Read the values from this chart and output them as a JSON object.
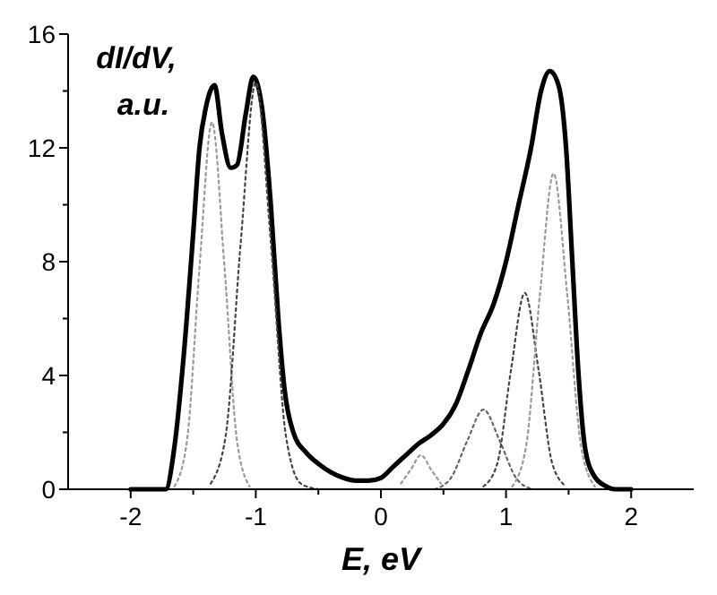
{
  "chart_data": {
    "type": "line",
    "xlabel": "E, eV",
    "ylabel": "dI/dV, a.u.",
    "xlim": [
      -2.5,
      2.5
    ],
    "xticks": [
      -2,
      {
        "value": -1.5,
        "label": null
      },
      -1,
      {
        "value": -0.5,
        "label": null
      },
      0,
      {
        "value": 0.5,
        "label": null
      },
      1,
      {
        "value": 1.5,
        "label": null
      },
      2
    ],
    "ylim": [
      0,
      16
    ],
    "yticks": [
      0,
      {
        "value": 2,
        "label": null
      },
      4,
      {
        "value": 6,
        "label": null
      },
      8,
      {
        "value": 10,
        "label": null
      },
      12,
      {
        "value": 14,
        "label": null
      },
      16
    ],
    "grid": false,
    "marker": "none",
    "series": [
      {
        "color": "#000000",
        "line_style": "solid",
        "x": [
          -2,
          -1.72,
          -1.65,
          -1.58,
          -1.5,
          -1.45,
          -1.4,
          -1.33,
          -1.27,
          -1.2,
          -1.15,
          -1.08,
          -1.02,
          -0.95,
          -0.88,
          -0.82,
          -0.77,
          -0.7,
          -0.6,
          -0.5,
          -0.4,
          -0.3,
          -0.2,
          -0.1,
          0,
          0.1,
          0.2,
          0.3,
          0.4,
          0.5,
          0.6,
          0.7,
          0.8,
          0.9,
          1,
          1.1,
          1.2,
          1.28,
          1.35,
          1.42,
          1.48,
          1.53,
          1.58,
          1.63,
          1.7,
          1.8,
          1.87,
          2
        ],
        "values": [
          0,
          0,
          1.5,
          4.5,
          9,
          12,
          13.4,
          14.2,
          12.5,
          11.3,
          11.4,
          13.2,
          14.5,
          13.4,
          10,
          6,
          3.5,
          2,
          1.3,
          0.9,
          0.6,
          0.4,
          0.3,
          0.3,
          0.4,
          0.8,
          1.2,
          1.6,
          1.9,
          2.3,
          3,
          4.2,
          5.5,
          6.5,
          8,
          10,
          12,
          14,
          14.7,
          14.2,
          12,
          8,
          4,
          1.5,
          0.5,
          0.1,
          0,
          0
        ]
      },
      {
        "color": "#999999",
        "line_style": "dotted",
        "x": [
          -1.65,
          -1.55,
          -1.45,
          -1.35,
          -1.25,
          -1.15,
          -1.05
        ],
        "values": [
          0.1,
          1.7,
          7.8,
          12.9,
          7.8,
          1.7,
          0.1
        ]
      },
      {
        "color": "#444444",
        "line_style": "dotted",
        "x": [
          -1.36,
          -1.24,
          -1.12,
          -1,
          -0.88,
          -0.76,
          -0.64,
          -0.5
        ],
        "values": [
          0.2,
          1.9,
          8.7,
          14.3,
          8.7,
          1.9,
          0.2,
          0
        ]
      },
      {
        "color": "#999999",
        "line_style": "dotted",
        "x": [
          0.16,
          0.24,
          0.32,
          0.4,
          0.48
        ],
        "values": [
          0.2,
          0.7,
          1.2,
          0.7,
          0.2
        ]
      },
      {
        "color": "#666666",
        "line_style": "dotted",
        "x": [
          0.43,
          0.56,
          0.69,
          0.82,
          0.95,
          1.08,
          1.21
        ],
        "values": [
          0,
          0.4,
          1.7,
          2.8,
          1.7,
          0.4,
          0
        ]
      },
      {
        "color": "#444444",
        "line_style": "dotted",
        "x": [
          0.82,
          0.93,
          1.04,
          1.15,
          1.26,
          1.37,
          1.48
        ],
        "values": [
          0.1,
          0.9,
          4.2,
          6.9,
          4.2,
          0.9,
          0.1
        ]
      },
      {
        "color": "#999999",
        "line_style": "dotted",
        "x": [
          1.05,
          1.16,
          1.27,
          1.38,
          1.49,
          1.6,
          1.71
        ],
        "values": [
          0.1,
          1.5,
          6.8,
          11.1,
          6.8,
          1.5,
          0.1
        ]
      }
    ]
  }
}
